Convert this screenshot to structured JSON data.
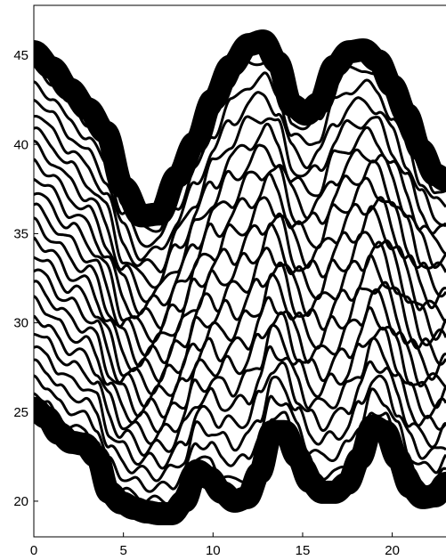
{
  "chart_data": {
    "type": "line",
    "title": "",
    "xlabel": "",
    "ylabel": "",
    "xlim": [
      0,
      23
    ],
    "ylim": [
      18,
      47.8
    ],
    "grid": false,
    "legend": "none",
    "x_ticks": [
      "0",
      "5",
      "10",
      "15",
      "20"
    ],
    "y_ticks": [
      "20",
      "25",
      "30",
      "35",
      "40",
      "45"
    ],
    "colors": {
      "line": "#000000",
      "background": "#ffffff",
      "axes": "#000000"
    },
    "series": [
      {
        "role": "upper-boundary-thick",
        "x": [
          0,
          1,
          2,
          3,
          4,
          5,
          6,
          7,
          8,
          9,
          10,
          11,
          12,
          12.8,
          13.6,
          14.4,
          15.2,
          15.9,
          16.8,
          17.6,
          18.4,
          19.2,
          20.0,
          20.8,
          21.6,
          22.4,
          23
        ],
        "y": [
          45.2,
          44.3,
          43.1,
          42.0,
          40.7,
          37.6,
          36.0,
          36.1,
          38.2,
          40.1,
          42.5,
          44.4,
          45.6,
          45.8,
          44.6,
          42.2,
          41.7,
          42.3,
          44.4,
          45.2,
          45.3,
          44.7,
          43.3,
          41.7,
          39.7,
          38.3,
          38.0
        ],
        "width": 13
      },
      {
        "role": "lower-boundary-thick",
        "x": [
          0,
          0.7,
          1.4,
          2.1,
          2.8,
          3.5,
          4.2,
          4.9,
          5.6,
          6.3,
          7.0,
          7.7,
          8.4,
          9.1,
          9.8,
          10.5,
          11.2,
          11.9,
          12.6,
          13.3,
          14.0,
          14.7,
          15.4,
          16.1,
          16.8,
          17.5,
          18.2,
          18.9,
          19.6,
          20.3,
          21.0,
          21.7,
          22.4,
          23
        ],
        "y": [
          25.2,
          24.7,
          23.8,
          23.3,
          23.2,
          22.5,
          20.5,
          19.9,
          19.6,
          19.4,
          19.3,
          19.3,
          20.0,
          21.7,
          21.3,
          20.5,
          20.0,
          20.2,
          21.6,
          23.9,
          23.9,
          22.5,
          21.1,
          20.5,
          20.5,
          21.0,
          22.4,
          24.2,
          23.9,
          22.4,
          20.8,
          20.2,
          20.3,
          21.0
        ],
        "width": 13
      },
      {
        "role": "interior-wavy-lines",
        "count": 22,
        "interpolation": "blend between upper and lower boundaries with growing small-scale ripple",
        "width": 3
      }
    ]
  }
}
